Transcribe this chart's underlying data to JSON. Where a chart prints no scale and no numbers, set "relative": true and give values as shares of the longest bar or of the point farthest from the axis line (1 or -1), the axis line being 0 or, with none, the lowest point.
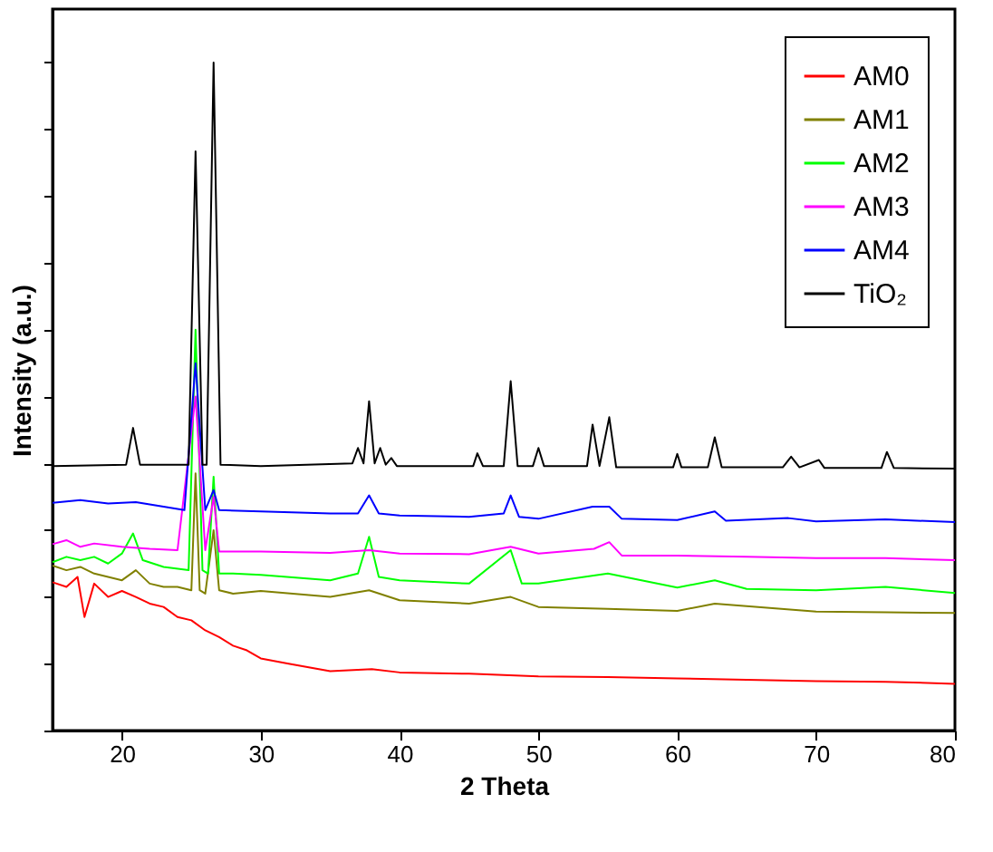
{
  "chart_data": {
    "type": "line",
    "xlabel": "2 Theta",
    "ylabel": "Intensity (a.u.)",
    "relative": true,
    "xlim": [
      15,
      80
    ],
    "xticks": [
      20,
      30,
      40,
      50,
      60,
      70,
      80
    ],
    "legend": "top right",
    "grid": false,
    "tick_labels": "x",
    "series": [
      {
        "name": "AM0",
        "color": "#ff0000",
        "x": [
          15,
          16,
          16.8,
          17.3,
          18,
          19,
          20,
          21,
          22,
          23,
          24,
          25,
          26,
          27,
          28,
          29,
          30,
          32,
          35,
          38,
          40,
          45,
          50,
          55,
          60,
          65,
          70,
          75,
          80
        ],
        "values": [
          0.222,
          0.215,
          0.23,
          0.17,
          0.22,
          0.2,
          0.209,
          0.2,
          0.19,
          0.185,
          0.17,
          0.165,
          0.15,
          0.14,
          0.127,
          0.12,
          0.108,
          0.1,
          0.089,
          0.092,
          0.087,
          0.085,
          0.081,
          0.08,
          0.078,
          0.076,
          0.074,
          0.073,
          0.07
        ]
      },
      {
        "name": "AM1",
        "color": "#808000",
        "x": [
          15,
          16,
          17,
          18,
          19,
          20,
          21,
          22,
          23,
          24,
          25,
          25.3,
          25.6,
          26,
          26.6,
          27,
          28,
          30,
          35,
          37.8,
          40,
          45,
          48,
          50,
          55,
          60,
          62.7,
          70,
          75,
          80
        ],
        "values": [
          0.247,
          0.24,
          0.245,
          0.235,
          0.23,
          0.225,
          0.24,
          0.22,
          0.215,
          0.215,
          0.21,
          0.385,
          0.21,
          0.205,
          0.3,
          0.21,
          0.205,
          0.209,
          0.2,
          0.21,
          0.195,
          0.19,
          0.2,
          0.185,
          0.182,
          0.179,
          0.19,
          0.178,
          0.177,
          0.176
        ]
      },
      {
        "name": "AM2",
        "color": "#00ff00",
        "x": [
          15,
          16,
          17,
          18,
          19,
          20,
          20.8,
          21.5,
          23,
          24.8,
          25.3,
          25.8,
          26.2,
          26.6,
          27,
          28,
          30,
          35,
          37,
          37.8,
          38.5,
          40,
          45,
          48,
          48.8,
          50,
          55,
          60,
          62.7,
          65,
          70,
          75,
          80
        ],
        "values": [
          0.252,
          0.26,
          0.255,
          0.26,
          0.25,
          0.265,
          0.295,
          0.255,
          0.245,
          0.24,
          0.6,
          0.24,
          0.235,
          0.38,
          0.235,
          0.235,
          0.233,
          0.225,
          0.235,
          0.29,
          0.23,
          0.225,
          0.22,
          0.27,
          0.22,
          0.22,
          0.235,
          0.214,
          0.225,
          0.212,
          0.21,
          0.215,
          0.206
        ]
      },
      {
        "name": "AM3",
        "color": "#ff00ff",
        "x": [
          15,
          16,
          17,
          18,
          20,
          22,
          24,
          25.3,
          26,
          26.6,
          27,
          30,
          35,
          37.8,
          40,
          45,
          48,
          50,
          54,
          55.1,
          56,
          60,
          65,
          70,
          75,
          80
        ],
        "values": [
          0.279,
          0.285,
          0.275,
          0.28,
          0.275,
          0.272,
          0.27,
          0.5,
          0.27,
          0.35,
          0.268,
          0.268,
          0.266,
          0.27,
          0.265,
          0.264,
          0.275,
          0.265,
          0.272,
          0.282,
          0.262,
          0.262,
          0.26,
          0.258,
          0.258,
          0.255
        ]
      },
      {
        "name": "AM4",
        "color": "#0000ff",
        "x": [
          15,
          17,
          19,
          21,
          23,
          24.5,
          25.3,
          26,
          26.6,
          27,
          30,
          35,
          37,
          37.8,
          38.5,
          40,
          45,
          47.5,
          48,
          48.6,
          50,
          53.9,
          55.1,
          56,
          60,
          62.7,
          63.5,
          68,
          70,
          75,
          80
        ],
        "values": [
          0.341,
          0.345,
          0.34,
          0.342,
          0.335,
          0.33,
          0.55,
          0.33,
          0.36,
          0.33,
          0.328,
          0.325,
          0.325,
          0.352,
          0.325,
          0.322,
          0.32,
          0.325,
          0.352,
          0.32,
          0.317,
          0.335,
          0.335,
          0.317,
          0.315,
          0.328,
          0.314,
          0.318,
          0.313,
          0.316,
          0.312
        ]
      },
      {
        "name": "TiO₂",
        "color": "#000000",
        "x": [
          15,
          20.3,
          20.8,
          21.3,
          24.8,
          25.3,
          25.8,
          26.1,
          26.6,
          27.1,
          30,
          36.6,
          37,
          37.4,
          37.8,
          38.2,
          38.6,
          39,
          39.4,
          39.8,
          42,
          45.3,
          45.6,
          46,
          47.5,
          48,
          48.5,
          49.6,
          50,
          50.4,
          53.5,
          53.9,
          54.4,
          55.1,
          55.6,
          59.7,
          60,
          60.3,
          62.2,
          62.7,
          63.2,
          67.6,
          68.2,
          68.8,
          70.2,
          70.6,
          74.7,
          75.1,
          75.6,
          80
        ],
        "values": [
          0.396,
          0.398,
          0.453,
          0.398,
          0.398,
          0.867,
          0.398,
          0.398,
          1.0,
          0.398,
          0.396,
          0.4,
          0.423,
          0.4,
          0.493,
          0.4,
          0.423,
          0.398,
          0.408,
          0.396,
          0.396,
          0.396,
          0.415,
          0.396,
          0.396,
          0.523,
          0.396,
          0.396,
          0.423,
          0.396,
          0.396,
          0.458,
          0.396,
          0.469,
          0.394,
          0.394,
          0.414,
          0.394,
          0.394,
          0.439,
          0.394,
          0.394,
          0.41,
          0.394,
          0.405,
          0.393,
          0.393,
          0.417,
          0.393,
          0.392
        ]
      }
    ]
  }
}
